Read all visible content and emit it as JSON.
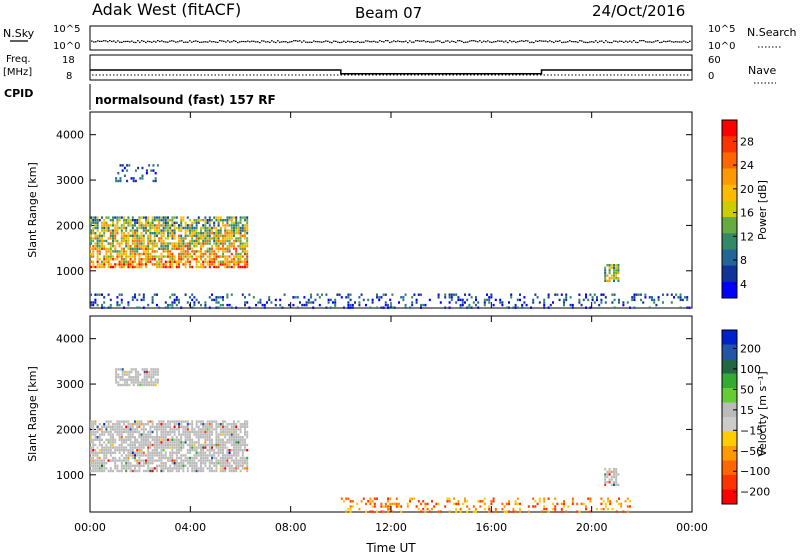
{
  "header": {
    "station": "Adak West (fitACF)",
    "beam": "Beam 07",
    "date": "24/Oct/2016"
  },
  "left_labels": {
    "nsky": "N.Sky",
    "nsky_hi": "10^5",
    "nsky_lo": "10^0",
    "freq_line1": "Freq.",
    "freq_line2": "[MHz]",
    "freq_hi": "18",
    "freq_lo": "8",
    "cpid": "CPID"
  },
  "right_labels": {
    "nsearch": "N.Search",
    "nsearch_hi": "10^5",
    "nsearch_lo": "10^0",
    "nave": "Nave",
    "nave_hi": "60",
    "nave_lo": "0"
  },
  "cpid_text": "normalsound (fast) 157 RF",
  "x_axis": {
    "label": "Time UT",
    "ticks": [
      "00:00",
      "04:00",
      "08:00",
      "12:00",
      "16:00",
      "20:00",
      "00:00"
    ]
  },
  "colorbars": {
    "power": {
      "label": "Power [dB]",
      "ticks": [
        "28",
        "24",
        "20",
        "16",
        "12",
        "8",
        "4"
      ],
      "colors": [
        "#ff0000",
        "#ff3300",
        "#ff6600",
        "#ff9900",
        "#ffbb00",
        "#cccc00",
        "#66aa44",
        "#338866",
        "#226699",
        "#113399",
        "#0000ff"
      ]
    },
    "velocity": {
      "label": "Velocity [m s⁻¹]",
      "ticks": [
        "200",
        "100",
        "50",
        "15",
        "−15",
        "−50",
        "−100",
        "−200"
      ],
      "colors": [
        "#0022cc",
        "#2255aa",
        "#226644",
        "#33aa33",
        "#66cc33",
        "#bbbbbb",
        "#cccccc",
        "#ffcc00",
        "#ff9900",
        "#ff6600",
        "#ff3300",
        "#ff0000"
      ]
    }
  },
  "chart_data": {
    "type": "heatmap",
    "title": "Adak West (fitACF)",
    "x_range_hours": [
      0,
      24
    ],
    "frequency_mhz": {
      "ylim": [
        8,
        18
      ],
      "segments": [
        {
          "start_h": 0,
          "end_h": 10,
          "value": 12
        },
        {
          "start_h": 10,
          "end_h": 18,
          "value": 10.5
        },
        {
          "start_h": 18,
          "end_h": 24,
          "value": 12
        }
      ]
    },
    "panels": [
      {
        "name": "power",
        "ylabel": "Slant Range [km]",
        "ylim": [
          180,
          4500
        ],
        "yticks": [
          "1000",
          "2000",
          "3000",
          "4000"
        ],
        "regions": [
          {
            "t0": 0,
            "t1": 6.3,
            "r0": 1100,
            "r1": 2200,
            "value": "mixed"
          },
          {
            "t0": 1.0,
            "t1": 2.7,
            "r0": 3000,
            "r1": 3350,
            "value": "low"
          },
          {
            "t0": 20.5,
            "t1": 21.1,
            "r0": 800,
            "r1": 1150,
            "value": "mid"
          },
          {
            "t0": 0,
            "t1": 24,
            "r0": 180,
            "r1": 500,
            "value": "low"
          }
        ]
      },
      {
        "name": "velocity",
        "ylabel": "Slant Range [km]",
        "ylim": [
          180,
          4500
        ],
        "yticks": [
          "1000",
          "2000",
          "3000",
          "4000"
        ],
        "regions": [
          {
            "t0": 0,
            "t1": 6.3,
            "r0": 1100,
            "r1": 2200,
            "value": "ground"
          },
          {
            "t0": 1.0,
            "t1": 2.7,
            "r0": 3000,
            "r1": 3350,
            "value": "ground"
          },
          {
            "t0": 20.5,
            "t1": 21.1,
            "r0": 800,
            "r1": 1150,
            "value": "ground"
          },
          {
            "t0": 10,
            "t1": 21.5,
            "r0": 180,
            "r1": 500,
            "value": "negative"
          }
        ]
      }
    ]
  }
}
